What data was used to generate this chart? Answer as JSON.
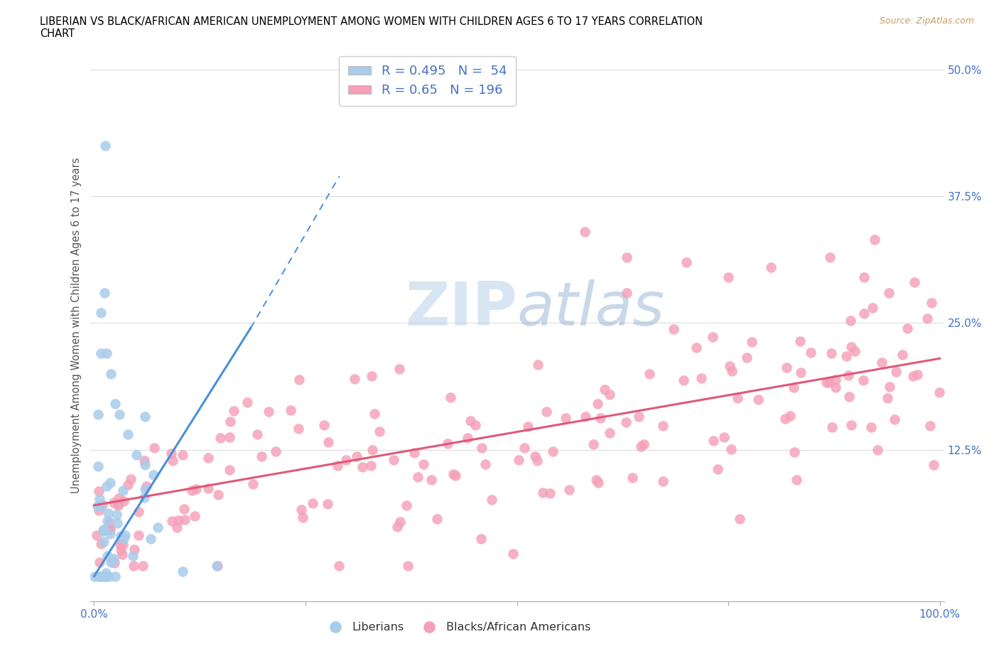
{
  "title_line1": "LIBERIAN VS BLACK/AFRICAN AMERICAN UNEMPLOYMENT AMONG WOMEN WITH CHILDREN AGES 6 TO 17 YEARS CORRELATION",
  "title_line2": "CHART",
  "source_text": "Source: ZipAtlas.com",
  "watermark": "ZIPatlas",
  "ylabel": "Unemployment Among Women with Children Ages 6 to 17 years",
  "liberian_R": 0.495,
  "liberian_N": 54,
  "black_R": 0.65,
  "black_N": 196,
  "liberian_color": "#a8ccea",
  "liberian_trend_color": "#4a90d9",
  "black_color": "#f5a0b8",
  "black_trend_color": "#e05878",
  "grid_color": "#dddddd",
  "background_color": "#ffffff",
  "text_color": "#4472c4",
  "title_color": "#000000",
  "source_color": "#c8a060",
  "ytick_labels": [
    "",
    "12.5%",
    "25.0%",
    "37.5%",
    "50.0%"
  ],
  "ytick_positions": [
    0.0,
    0.125,
    0.25,
    0.375,
    0.5
  ],
  "xticklabels": [
    "0.0%",
    "",
    "",
    "",
    "100.0%"
  ],
  "xtick_positions": [
    0.0,
    0.25,
    0.5,
    0.75,
    1.0
  ],
  "ylim": [
    -0.025,
    0.52
  ],
  "xlim": [
    -0.005,
    1.005
  ],
  "black_trend_x0": 0.0,
  "black_trend_y0": 0.07,
  "black_trend_x1": 1.0,
  "black_trend_y1": 0.215,
  "lib_trend_solid_x0": 0.0,
  "lib_trend_solid_y0": 0.0,
  "lib_trend_solid_x1": 0.185,
  "lib_trend_solid_y1": 0.245,
  "lib_trend_dash_x0": 0.185,
  "lib_trend_dash_y0": 0.245,
  "lib_trend_dash_x1": 0.29,
  "lib_trend_dash_y1": 0.395
}
